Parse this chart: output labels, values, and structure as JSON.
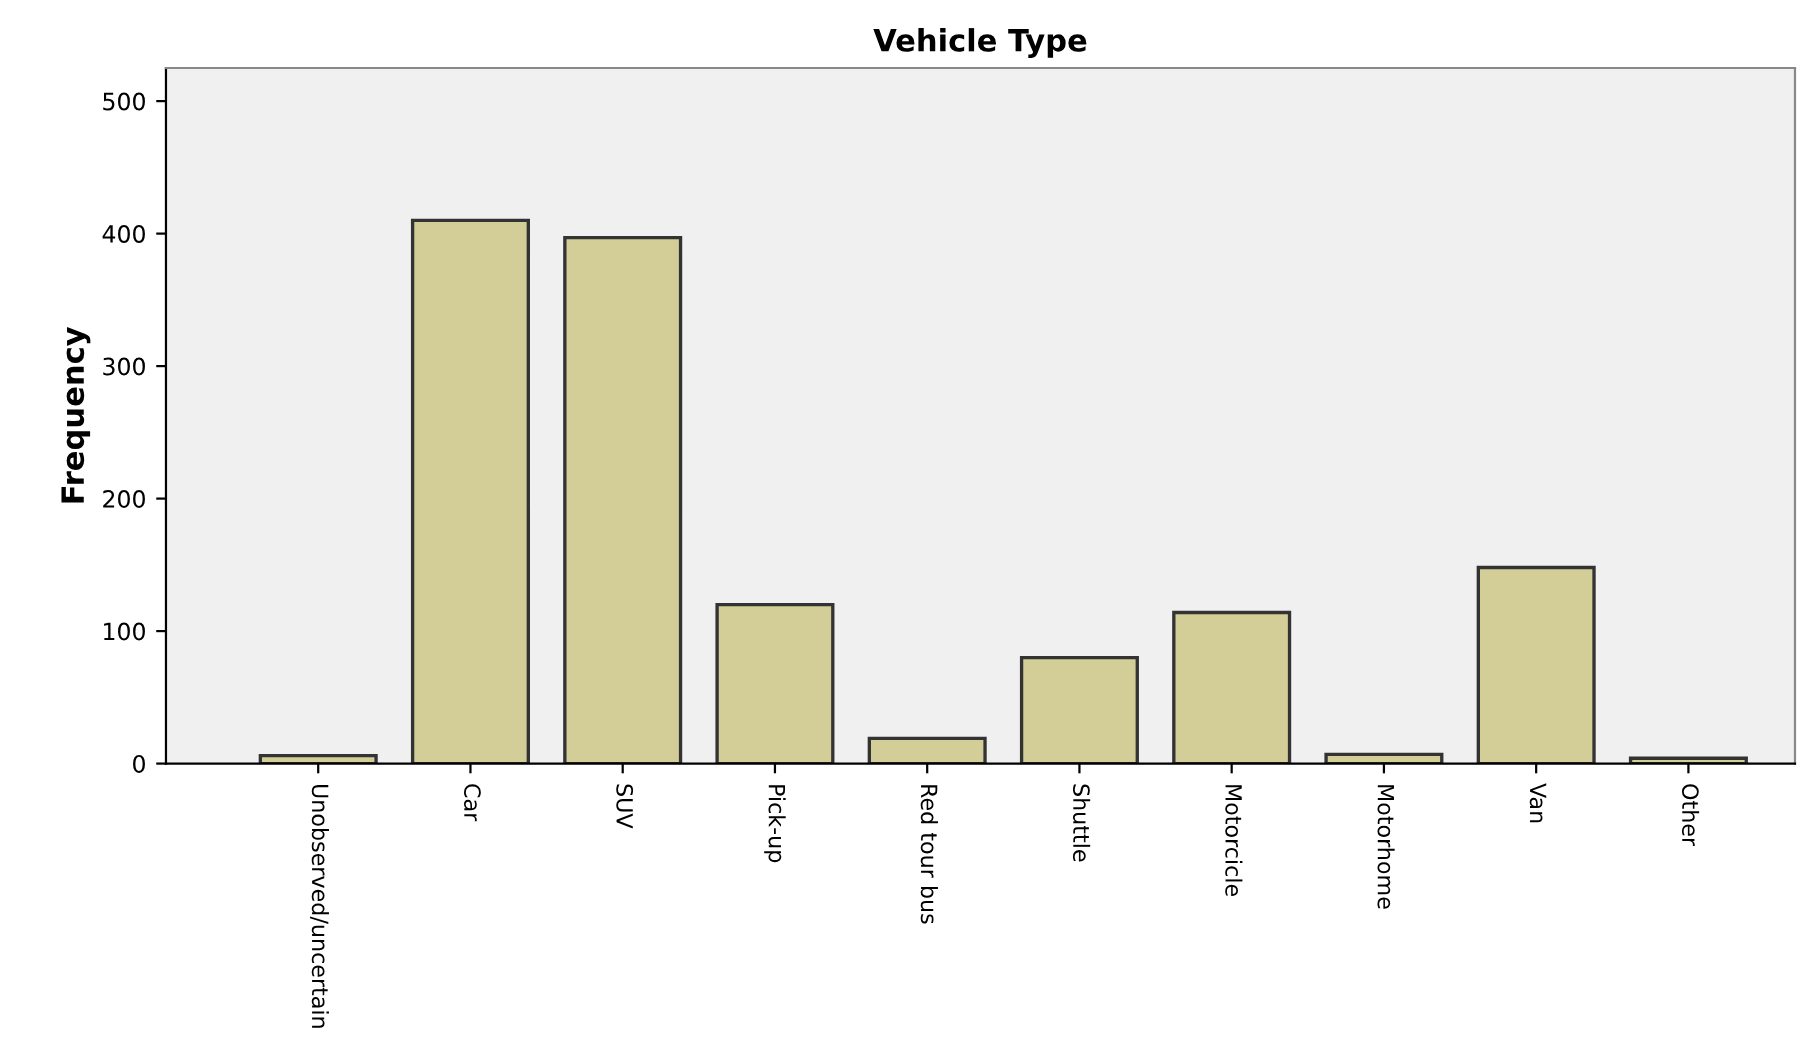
{
  "chart_data": {
    "type": "bar",
    "title": "Vehicle Type",
    "ylabel": "Frequency",
    "categories": [
      "Unobserved/uncertain",
      "Car",
      "SUV",
      "Pick-up",
      "Red tour bus",
      "Shuttle",
      "Motorcicle",
      "Motorhome",
      "Van",
      "Other"
    ],
    "values": [
      6,
      410,
      397,
      120,
      19,
      80,
      114,
      7,
      148,
      4
    ],
    "color": "#d3ce97",
    "ylim": [
      0,
      525
    ],
    "yticks": [
      0,
      100,
      200,
      300,
      400,
      500
    ],
    "grid": false,
    "legend": false
  }
}
